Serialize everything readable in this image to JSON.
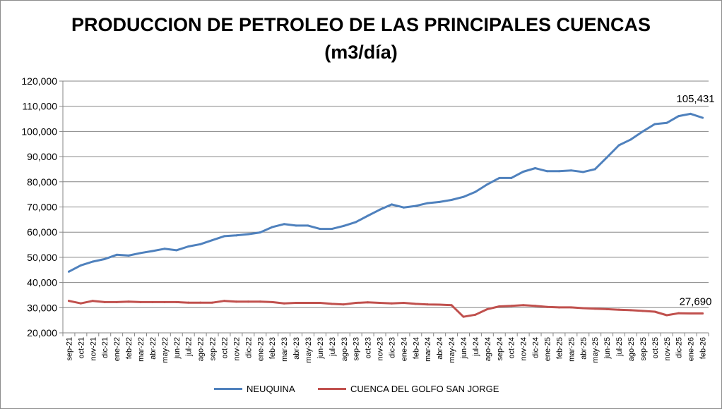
{
  "chart_data": {
    "type": "line",
    "title": "PRODUCCION DE PETROLEO DE LAS PRINCIPALES CUENCAS",
    "subtitle": "(m3/día)",
    "xlabel": "",
    "ylabel": "",
    "ylim": [
      20000,
      120000
    ],
    "yticks": [
      20000,
      30000,
      40000,
      50000,
      60000,
      70000,
      80000,
      90000,
      100000,
      110000,
      120000
    ],
    "ytick_labels": [
      "20,000",
      "30,000",
      "40,000",
      "50,000",
      "60,000",
      "70,000",
      "80,000",
      "90,000",
      "100,000",
      "110,000",
      "120,000"
    ],
    "grid": true,
    "legend_position": "bottom",
    "categories": [
      "sep-21",
      "oct-21",
      "nov-21",
      "dic-21",
      "ene-22",
      "feb-22",
      "mar-22",
      "abr-22",
      "may-22",
      "jun-22",
      "jul-22",
      "ago-22",
      "sep-22",
      "oct-22",
      "nov-22",
      "dic-22",
      "ene-23",
      "feb-23",
      "mar-23",
      "abr-23",
      "may-23",
      "jun-23",
      "jul-23",
      "ago-23",
      "sep-23",
      "oct-23",
      "nov-23",
      "dic-23",
      "ene-24",
      "feb-24",
      "mar-24",
      "abr-24",
      "may-24",
      "jun-24",
      "jul-24",
      "ago-24",
      "sep-24",
      "oct-24",
      "nov-24",
      "dic-24",
      "ene-25",
      "feb-25",
      "mar-25",
      "abr-25",
      "may-25",
      "jun-25",
      "jul-25",
      "ago-25",
      "sep-25",
      "oct-25",
      "nov-25",
      "dic-25",
      "ene-26",
      "feb-26"
    ],
    "series": [
      {
        "name": "NEUQUINA",
        "color": "#4f81bd",
        "values": [
          44300,
          46800,
          48300,
          49300,
          51000,
          50700,
          51700,
          52500,
          53400,
          52800,
          54300,
          55200,
          56800,
          58400,
          58700,
          59200,
          59900,
          62000,
          63200,
          62600,
          62600,
          61300,
          61300,
          62500,
          64000,
          66500,
          68900,
          71000,
          69800,
          70400,
          71500,
          72000,
          72800,
          74000,
          76000,
          79000,
          81500,
          81500,
          84000,
          85400,
          84200,
          84200,
          84500,
          83900,
          85000,
          89700,
          94500,
          96800,
          100000,
          102900,
          103400,
          106100,
          107000,
          105431
        ],
        "end_label": "105,431"
      },
      {
        "name": "CUENCA DEL GOLFO SAN JORGE",
        "color": "#c0504d",
        "values": [
          32700,
          31700,
          32700,
          32200,
          32200,
          32400,
          32200,
          32200,
          32200,
          32200,
          32000,
          32000,
          32000,
          32700,
          32400,
          32400,
          32400,
          32200,
          31700,
          31900,
          31900,
          31900,
          31500,
          31300,
          31900,
          32100,
          31900,
          31700,
          31900,
          31500,
          31300,
          31200,
          31000,
          26400,
          27200,
          29400,
          30500,
          30700,
          31000,
          30700,
          30300,
          30100,
          30100,
          29800,
          29600,
          29400,
          29200,
          29000,
          28700,
          28400,
          27000,
          27800,
          27700,
          27690
        ],
        "end_label": "27,690"
      }
    ]
  }
}
